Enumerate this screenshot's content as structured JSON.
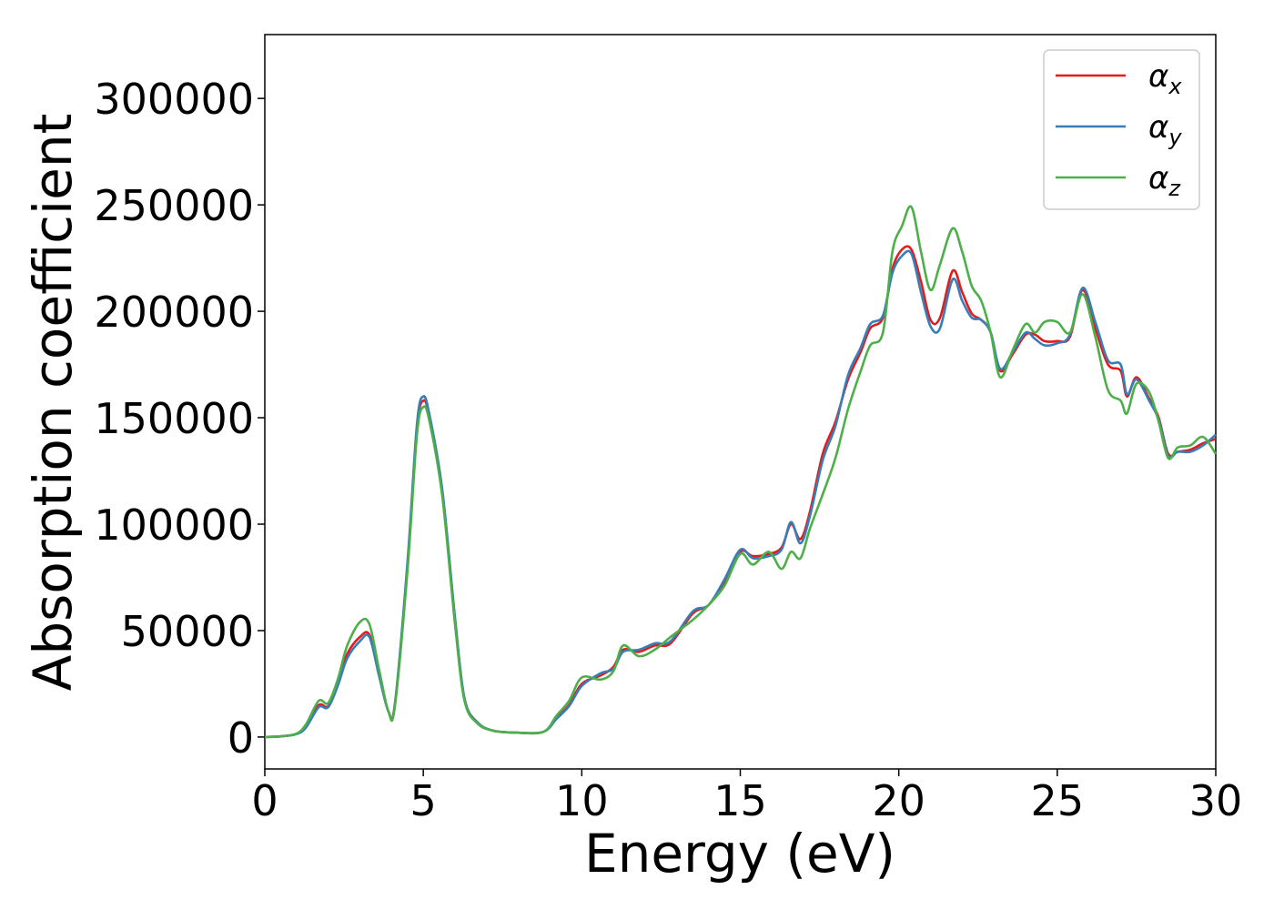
{
  "chart_data": {
    "type": "line",
    "xlabel": "Energy (eV)",
    "ylabel": "Absorption coefficient",
    "xlim": [
      0,
      30
    ],
    "ylim": [
      -15000,
      330000
    ],
    "xticks": [
      0,
      5,
      10,
      15,
      20,
      25,
      30
    ],
    "yticks": [
      0,
      50000,
      100000,
      150000,
      200000,
      250000,
      300000
    ],
    "xtick_labels": [
      "0",
      "5",
      "10",
      "15",
      "20",
      "25",
      "30"
    ],
    "ytick_labels": [
      "0",
      "50000",
      "100000",
      "150000",
      "200000",
      "250000",
      "300000"
    ],
    "grid": false,
    "legend_position": "top-right",
    "series": [
      {
        "name": "α_x",
        "label_main": "α",
        "label_sub": "x",
        "color": "#e41a1c",
        "points": [
          [
            0,
            0
          ],
          [
            0.5,
            300
          ],
          [
            1.0,
            1500
          ],
          [
            1.3,
            5000
          ],
          [
            1.7,
            15000
          ],
          [
            2.0,
            14500
          ],
          [
            2.3,
            25000
          ],
          [
            2.6,
            39000
          ],
          [
            3.0,
            47000
          ],
          [
            3.3,
            48000
          ],
          [
            3.6,
            30000
          ],
          [
            3.9,
            12000
          ],
          [
            4.1,
            15000
          ],
          [
            4.5,
            80000
          ],
          [
            4.8,
            145000
          ],
          [
            5.0,
            158000
          ],
          [
            5.2,
            150000
          ],
          [
            5.6,
            115000
          ],
          [
            6.0,
            55000
          ],
          [
            6.3,
            18000
          ],
          [
            6.7,
            7000
          ],
          [
            7.2,
            3000
          ],
          [
            8.0,
            2000
          ],
          [
            8.8,
            2500
          ],
          [
            9.2,
            9000
          ],
          [
            9.6,
            15000
          ],
          [
            10.0,
            25000
          ],
          [
            10.6,
            29000
          ],
          [
            11.0,
            33000
          ],
          [
            11.3,
            41000
          ],
          [
            11.8,
            40000
          ],
          [
            12.3,
            43000
          ],
          [
            12.8,
            44000
          ],
          [
            13.5,
            58000
          ],
          [
            14.0,
            62000
          ],
          [
            14.5,
            73000
          ],
          [
            15.0,
            87000
          ],
          [
            15.4,
            85000
          ],
          [
            15.9,
            86000
          ],
          [
            16.3,
            89000
          ],
          [
            16.6,
            100000
          ],
          [
            16.9,
            93000
          ],
          [
            17.2,
            106000
          ],
          [
            17.6,
            133000
          ],
          [
            18.0,
            148000
          ],
          [
            18.4,
            168000
          ],
          [
            18.8,
            181000
          ],
          [
            19.1,
            192000
          ],
          [
            19.5,
            197000
          ],
          [
            19.8,
            220000
          ],
          [
            20.1,
            229000
          ],
          [
            20.4,
            229000
          ],
          [
            20.7,
            214000
          ],
          [
            21.0,
            196000
          ],
          [
            21.3,
            197000
          ],
          [
            21.7,
            219000
          ],
          [
            22.0,
            209000
          ],
          [
            22.3,
            199000
          ],
          [
            22.6,
            196000
          ],
          [
            22.9,
            190000
          ],
          [
            23.2,
            172000
          ],
          [
            23.6,
            180000
          ],
          [
            24.0,
            189000
          ],
          [
            24.3,
            189000
          ],
          [
            24.6,
            186000
          ],
          [
            25.0,
            186000
          ],
          [
            25.4,
            188000
          ],
          [
            25.8,
            210000
          ],
          [
            26.2,
            192000
          ],
          [
            26.6,
            175000
          ],
          [
            27.0,
            172000
          ],
          [
            27.2,
            160000
          ],
          [
            27.5,
            169000
          ],
          [
            27.9,
            159000
          ],
          [
            28.2,
            150000
          ],
          [
            28.5,
            133000
          ],
          [
            28.8,
            134000
          ],
          [
            29.2,
            135000
          ],
          [
            29.6,
            138000
          ],
          [
            30.0,
            140000
          ]
        ]
      },
      {
        "name": "α_y",
        "label_main": "α",
        "label_sub": "y",
        "color": "#377eb8",
        "points": [
          [
            0,
            0
          ],
          [
            0.5,
            300
          ],
          [
            1.0,
            1400
          ],
          [
            1.3,
            4500
          ],
          [
            1.7,
            14000
          ],
          [
            2.0,
            14000
          ],
          [
            2.3,
            24000
          ],
          [
            2.6,
            37000
          ],
          [
            3.0,
            45000
          ],
          [
            3.3,
            47000
          ],
          [
            3.6,
            29000
          ],
          [
            3.9,
            12000
          ],
          [
            4.1,
            15000
          ],
          [
            4.5,
            82000
          ],
          [
            4.8,
            147000
          ],
          [
            5.0,
            160000
          ],
          [
            5.2,
            151000
          ],
          [
            5.6,
            116000
          ],
          [
            6.0,
            56000
          ],
          [
            6.3,
            18000
          ],
          [
            6.7,
            7000
          ],
          [
            7.2,
            3000
          ],
          [
            8.0,
            2000
          ],
          [
            8.8,
            2500
          ],
          [
            9.2,
            8500
          ],
          [
            9.6,
            14500
          ],
          [
            10.0,
            24000
          ],
          [
            10.6,
            30000
          ],
          [
            11.0,
            32000
          ],
          [
            11.3,
            40000
          ],
          [
            11.8,
            41000
          ],
          [
            12.3,
            44000
          ],
          [
            12.8,
            45000
          ],
          [
            13.5,
            59000
          ],
          [
            14.0,
            62000
          ],
          [
            14.5,
            74000
          ],
          [
            15.0,
            88000
          ],
          [
            15.4,
            84000
          ],
          [
            15.9,
            85000
          ],
          [
            16.3,
            88000
          ],
          [
            16.6,
            101000
          ],
          [
            16.9,
            91000
          ],
          [
            17.2,
            104000
          ],
          [
            17.6,
            130000
          ],
          [
            18.0,
            146000
          ],
          [
            18.4,
            170000
          ],
          [
            18.8,
            183000
          ],
          [
            19.1,
            194000
          ],
          [
            19.5,
            198000
          ],
          [
            19.8,
            218000
          ],
          [
            20.1,
            226000
          ],
          [
            20.4,
            227000
          ],
          [
            20.7,
            209000
          ],
          [
            21.0,
            193000
          ],
          [
            21.3,
            192000
          ],
          [
            21.7,
            215000
          ],
          [
            22.0,
            205000
          ],
          [
            22.3,
            197000
          ],
          [
            22.6,
            196000
          ],
          [
            22.9,
            190000
          ],
          [
            23.2,
            173000
          ],
          [
            23.6,
            181000
          ],
          [
            24.0,
            190000
          ],
          [
            24.3,
            187000
          ],
          [
            24.6,
            184000
          ],
          [
            25.0,
            185000
          ],
          [
            25.4,
            189000
          ],
          [
            25.8,
            211000
          ],
          [
            26.2,
            195000
          ],
          [
            26.6,
            177000
          ],
          [
            27.0,
            175000
          ],
          [
            27.2,
            161000
          ],
          [
            27.5,
            168000
          ],
          [
            27.9,
            158000
          ],
          [
            28.2,
            149000
          ],
          [
            28.5,
            132000
          ],
          [
            28.8,
            134000
          ],
          [
            29.2,
            134000
          ],
          [
            29.6,
            137000
          ],
          [
            30.0,
            142000
          ]
        ]
      },
      {
        "name": "α_z",
        "label_main": "α",
        "label_sub": "z",
        "color": "#4daf4a",
        "points": [
          [
            0,
            0
          ],
          [
            0.5,
            300
          ],
          [
            1.0,
            1600
          ],
          [
            1.3,
            6000
          ],
          [
            1.7,
            17000
          ],
          [
            2.0,
            16000
          ],
          [
            2.3,
            27000
          ],
          [
            2.6,
            43000
          ],
          [
            3.0,
            54000
          ],
          [
            3.3,
            53000
          ],
          [
            3.6,
            32000
          ],
          [
            3.9,
            12000
          ],
          [
            4.1,
            14000
          ],
          [
            4.5,
            78000
          ],
          [
            4.8,
            142000
          ],
          [
            5.0,
            155000
          ],
          [
            5.2,
            148000
          ],
          [
            5.6,
            113000
          ],
          [
            6.0,
            53000
          ],
          [
            6.3,
            17000
          ],
          [
            6.7,
            6500
          ],
          [
            7.2,
            3000
          ],
          [
            8.0,
            2000
          ],
          [
            8.8,
            2500
          ],
          [
            9.2,
            10000
          ],
          [
            9.6,
            17000
          ],
          [
            10.0,
            28000
          ],
          [
            10.6,
            27000
          ],
          [
            11.0,
            31000
          ],
          [
            11.3,
            43000
          ],
          [
            11.8,
            38000
          ],
          [
            12.3,
            41000
          ],
          [
            12.8,
            47000
          ],
          [
            13.5,
            55000
          ],
          [
            14.0,
            62000
          ],
          [
            14.5,
            71000
          ],
          [
            15.0,
            86000
          ],
          [
            15.4,
            81000
          ],
          [
            15.9,
            87000
          ],
          [
            16.3,
            79000
          ],
          [
            16.6,
            87000
          ],
          [
            16.9,
            84000
          ],
          [
            17.2,
            98000
          ],
          [
            17.6,
            114000
          ],
          [
            18.0,
            131000
          ],
          [
            18.4,
            154000
          ],
          [
            18.8,
            172000
          ],
          [
            19.1,
            184000
          ],
          [
            19.5,
            190000
          ],
          [
            19.8,
            228000
          ],
          [
            20.1,
            240000
          ],
          [
            20.4,
            249000
          ],
          [
            20.7,
            228000
          ],
          [
            21.0,
            210000
          ],
          [
            21.3,
            222000
          ],
          [
            21.7,
            239000
          ],
          [
            22.0,
            228000
          ],
          [
            22.3,
            212000
          ],
          [
            22.6,
            205000
          ],
          [
            22.9,
            190000
          ],
          [
            23.2,
            169000
          ],
          [
            23.6,
            182000
          ],
          [
            24.0,
            194000
          ],
          [
            24.3,
            190000
          ],
          [
            24.6,
            195000
          ],
          [
            25.0,
            195000
          ],
          [
            25.4,
            190000
          ],
          [
            25.8,
            208000
          ],
          [
            26.2,
            188000
          ],
          [
            26.6,
            163000
          ],
          [
            27.0,
            158000
          ],
          [
            27.2,
            152000
          ],
          [
            27.5,
            166000
          ],
          [
            27.9,
            162000
          ],
          [
            28.2,
            148000
          ],
          [
            28.5,
            131000
          ],
          [
            28.8,
            136000
          ],
          [
            29.2,
            137000
          ],
          [
            29.6,
            141000
          ],
          [
            30.0,
            133000
          ]
        ]
      }
    ]
  }
}
